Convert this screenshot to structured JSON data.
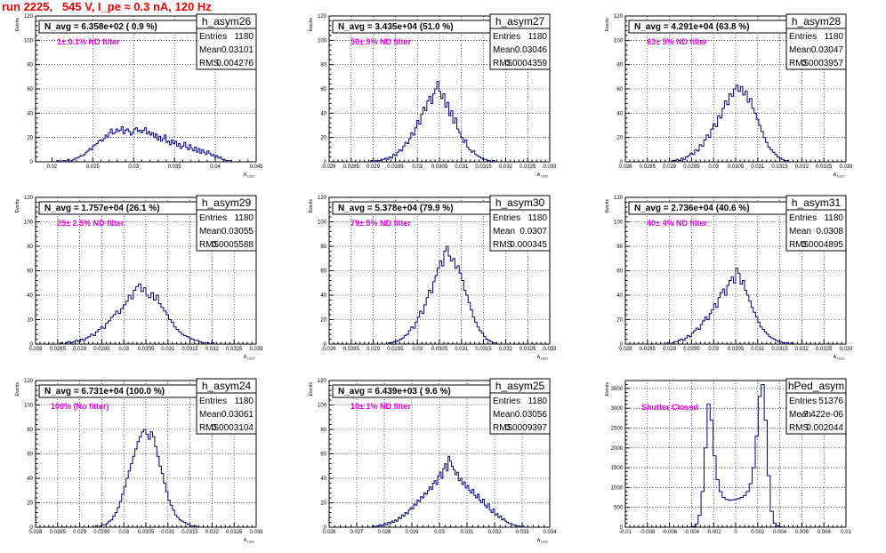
{
  "page_title": "run 2225,   545 V, I_pe ≈ 0.3 nA, 120 Hz",
  "colors": {
    "title": "#ee0000",
    "histogram": "#000080",
    "annotation": "#ee00ee"
  },
  "chart_data": [
    {
      "type": "bar",
      "name": "h_asym26",
      "stats": {
        "Entries": "1180",
        "Mean": "0.03101",
        "RMS": "0.004276"
      },
      "navg": "N_avg = 6.358e+02 ( 0.9 %)",
      "note": "1± 0.1% ND filter",
      "ylabel": "Events",
      "xlabel": "A_LED",
      "xlim": [
        0.018,
        0.045
      ],
      "ylim": [
        0,
        120
      ],
      "xticks": [
        "0.02",
        "0.025",
        "0.03",
        "0.035",
        "0.04",
        "0.045"
      ],
      "xtick_values": [
        0.02,
        0.025,
        0.03,
        0.035,
        0.04,
        0.045
      ],
      "yticks": [
        "0",
        "20",
        "40",
        "60",
        "80",
        "100",
        "120"
      ],
      "yminor": 5,
      "grid": true,
      "bin_range": [
        0.0195,
        0.0425
      ],
      "values": [
        0,
        0,
        0,
        0,
        0,
        1,
        0,
        0,
        1,
        1,
        0,
        2,
        0,
        1,
        2,
        3,
        3,
        4,
        5,
        5,
        6,
        8,
        9,
        11,
        10,
        13,
        14,
        15,
        17,
        18,
        17,
        19,
        22,
        20,
        24,
        27,
        23,
        24,
        27,
        25,
        26,
        29,
        23,
        26,
        27,
        25,
        22,
        24,
        27,
        28,
        25,
        26,
        24,
        26,
        28,
        23,
        25,
        22,
        24,
        20,
        23,
        18,
        21,
        17,
        19,
        22,
        16,
        17,
        14,
        18,
        15,
        17,
        13,
        15,
        11,
        13,
        16,
        12,
        10,
        14,
        11,
        9,
        12,
        8,
        11,
        7,
        10,
        8,
        6,
        9,
        7,
        5,
        6,
        4,
        5,
        3,
        4,
        2,
        2,
        1,
        1,
        1,
        0,
        0,
        0
      ]
    },
    {
      "type": "bar",
      "name": "h_asym27",
      "stats": {
        "Entries": "1180",
        "Mean": "0.03046",
        "RMS": "0.0004359"
      },
      "navg": "N_avg = 3.435e+04 (51.0 %)",
      "note": "50± 5% ND filter",
      "ylabel": "Events",
      "xlabel": "A_LED",
      "xlim": [
        0.028,
        0.033
      ],
      "ylim": [
        0,
        120
      ],
      "xticks": [
        "0.028",
        "0.0285",
        "0.029",
        "0.0295",
        "0.03",
        "0.0305",
        "0.031",
        "0.0315",
        "0.032",
        "0.0325",
        "0.033"
      ],
      "yticks": [
        "0",
        "20",
        "40",
        "60",
        "80",
        "100",
        "120"
      ],
      "yminor": 5,
      "grid": true,
      "bin_range": [
        0.0289,
        0.0318
      ],
      "values": [
        0,
        1,
        0,
        1,
        1,
        1,
        2,
        2,
        3,
        2,
        4,
        3,
        6,
        5,
        8,
        10,
        9,
        13,
        16,
        15,
        19,
        24,
        22,
        28,
        34,
        31,
        39,
        45,
        42,
        50,
        54,
        48,
        56,
        60,
        66,
        58,
        52,
        56,
        45,
        49,
        38,
        42,
        32,
        36,
        27,
        24,
        20,
        16,
        18,
        12,
        10,
        8,
        9,
        6,
        5,
        4,
        3,
        2,
        2,
        1,
        1,
        0,
        1,
        0
      ]
    },
    {
      "type": "bar",
      "name": "h_asym28",
      "stats": {
        "Entries": "1180",
        "Mean": "0.03047",
        "RMS": "0.0003957"
      },
      "navg": "N_avg = 4.291e+04 (63.8 %)",
      "note": "63± 5% ND filter",
      "ylabel": "Events",
      "xlabel": "A_LED",
      "xlim": [
        0.028,
        0.033
      ],
      "ylim": [
        0,
        120
      ],
      "xticks": [
        "0.028",
        "0.0285",
        "0.029",
        "0.0295",
        "0.03",
        "0.0305",
        "0.031",
        "0.0315",
        "0.032",
        "0.0325",
        "0.033"
      ],
      "yticks": [
        "0",
        "20",
        "40",
        "60",
        "80",
        "100",
        "120"
      ],
      "yminor": 5,
      "grid": true,
      "bin_range": [
        0.029,
        0.0318
      ],
      "values": [
        0,
        1,
        1,
        2,
        1,
        3,
        2,
        4,
        5,
        7,
        6,
        10,
        9,
        14,
        13,
        18,
        22,
        20,
        27,
        31,
        29,
        38,
        36,
        44,
        50,
        47,
        56,
        54,
        60,
        63,
        58,
        62,
        55,
        58,
        49,
        52,
        44,
        40,
        35,
        30,
        25,
        20,
        16,
        12,
        10,
        8,
        6,
        4,
        3,
        2,
        1,
        1,
        0,
        0
      ]
    },
    {
      "type": "bar",
      "name": "h_asym29",
      "stats": {
        "Entries": "1180",
        "Mean": "0.03055",
        "RMS": "0.0005588"
      },
      "navg": "N_avg = 1.757e+04 (26.1 %)",
      "note": "25± 2.5% ND filter",
      "ylabel": "Events",
      "xlabel": "A_LED",
      "xlim": [
        0.028,
        0.033
      ],
      "ylim": [
        0,
        120
      ],
      "xticks": [
        "0.028",
        "0.0285",
        "0.029",
        "0.0295",
        "0.03",
        "0.0305",
        "0.031",
        "0.0315",
        "0.032",
        "0.0325",
        "0.033"
      ],
      "yticks": [
        "0",
        "20",
        "40",
        "60",
        "80",
        "100",
        "120"
      ],
      "yminor": 5,
      "grid": true,
      "bin_range": [
        0.0285,
        0.0321
      ],
      "values": [
        0,
        1,
        0,
        1,
        2,
        1,
        2,
        3,
        2,
        4,
        3,
        5,
        6,
        8,
        7,
        10,
        12,
        14,
        13,
        17,
        19,
        22,
        24,
        27,
        25,
        29,
        32,
        35,
        40,
        37,
        44,
        47,
        49,
        43,
        46,
        40,
        38,
        42,
        36,
        40,
        33,
        30,
        27,
        24,
        20,
        18,
        14,
        12,
        10,
        8,
        7,
        6,
        5,
        4,
        3,
        3,
        2,
        1,
        1,
        1,
        0,
        1,
        0
      ]
    },
    {
      "type": "bar",
      "name": "h_asym30",
      "stats": {
        "Entries": "1180",
        "Mean": "0.0307",
        "RMS": "0.000345"
      },
      "navg": "N_avg = 5.378e+04 (79.9 %)",
      "note": "79± 5% ND filter",
      "ylabel": "Events",
      "xlabel": "A_LED",
      "xlim": [
        0.028,
        0.033
      ],
      "ylim": [
        0,
        120
      ],
      "xticks": [
        "0.028",
        "0.0285",
        "0.029",
        "0.0295",
        "0.03",
        "0.0305",
        "0.031",
        "0.0315",
        "0.032",
        "0.0325",
        "0.033"
      ],
      "yticks": [
        "0",
        "20",
        "40",
        "60",
        "80",
        "100",
        "120"
      ],
      "yminor": 5,
      "grid": true,
      "bin_range": [
        0.0293,
        0.0319
      ],
      "values": [
        0,
        1,
        1,
        2,
        2,
        3,
        4,
        5,
        7,
        8,
        11,
        14,
        13,
        18,
        22,
        27,
        25,
        32,
        38,
        44,
        42,
        51,
        56,
        62,
        68,
        64,
        76,
        80,
        72,
        68,
        70,
        62,
        64,
        58,
        52,
        44,
        40,
        34,
        28,
        22,
        18,
        14,
        11,
        9,
        6,
        4,
        3,
        2,
        1,
        1,
        0,
        0
      ]
    },
    {
      "type": "bar",
      "name": "h_asym31",
      "stats": {
        "Entries": "1180",
        "Mean": "0.0308",
        "RMS": "0.0004895"
      },
      "navg": "N_avg = 2.736e+04 (40.6 %)",
      "note": "40± 4% ND filter",
      "ylabel": "Events",
      "xlabel": "A_LED",
      "xlim": [
        0.028,
        0.033
      ],
      "ylim": [
        0,
        120
      ],
      "xticks": [
        "0.028",
        "0.0285",
        "0.029",
        "0.0295",
        "0.03",
        "0.0305",
        "0.031",
        "0.0315",
        "0.032",
        "0.0325",
        "0.033"
      ],
      "yticks": [
        "0",
        "20",
        "40",
        "60",
        "80",
        "100",
        "120"
      ],
      "yminor": 5,
      "grid": true,
      "bin_range": [
        0.0289,
        0.0321
      ],
      "values": [
        0,
        1,
        0,
        1,
        2,
        2,
        3,
        4,
        3,
        5,
        7,
        6,
        9,
        11,
        13,
        12,
        16,
        19,
        22,
        20,
        25,
        28,
        33,
        30,
        38,
        42,
        45,
        40,
        48,
        52,
        55,
        50,
        62,
        58,
        49,
        52,
        44,
        40,
        35,
        30,
        26,
        22,
        18,
        14,
        12,
        10,
        8,
        6,
        5,
        4,
        3,
        2,
        2,
        1,
        1,
        1,
        0,
        1,
        0,
        0,
        0,
        0,
        0,
        0
      ]
    },
    {
      "type": "bar",
      "name": "h_asym24",
      "stats": {
        "Entries": "1180",
        "Mean": "0.03061",
        "RMS": "0.0003104"
      },
      "navg": "N_avg = 6.731e+04 (100.0 %)",
      "note": "100% (No filter)",
      "ylabel": "Events",
      "xlabel": "A_LED",
      "xlim": [
        0.028,
        0.033
      ],
      "ylim": [
        0,
        120
      ],
      "xticks": [
        "0.028",
        "0.0285",
        "0.029",
        "0.0295",
        "0.03",
        "0.0305",
        "0.031",
        "0.0315",
        "0.032",
        "0.0325",
        "0.033"
      ],
      "yticks": [
        "0",
        "20",
        "40",
        "60",
        "80",
        "100",
        "120"
      ],
      "yminor": 5,
      "grid": true,
      "bin_range": [
        0.0293,
        0.0318
      ],
      "values": [
        0,
        1,
        0,
        1,
        2,
        2,
        3,
        5,
        6,
        9,
        12,
        16,
        21,
        27,
        33,
        40,
        46,
        52,
        58,
        64,
        70,
        74,
        78,
        80,
        76,
        72,
        78,
        74,
        66,
        58,
        50,
        44,
        36,
        29,
        22,
        18,
        14,
        10,
        8,
        6,
        5,
        4,
        3,
        2,
        1,
        1,
        1,
        0,
        0,
        0
      ]
    },
    {
      "type": "bar",
      "name": "h_asym25",
      "stats": {
        "Entries": "1180",
        "Mean": "0.03056",
        "RMS": "0.0009397"
      },
      "navg": "N_avg = 6.439e+03 ( 9.6 %)",
      "note": "10± 1% ND filter",
      "ylabel": "Events",
      "xlabel": "A_LED",
      "xlim": [
        0.026,
        0.034
      ],
      "ylim": [
        0,
        120
      ],
      "xticks": [
        "0.026",
        "0.027",
        "0.028",
        "0.029",
        "0.03",
        "0.031",
        "0.032",
        "0.033",
        "0.034"
      ],
      "yticks": [
        "0",
        "20",
        "40",
        "60",
        "80",
        "100",
        "120"
      ],
      "yminor": 5,
      "grid": true,
      "bin_range": [
        0.0275,
        0.0335
      ],
      "values": [
        0,
        1,
        0,
        1,
        1,
        2,
        1,
        2,
        3,
        2,
        4,
        3,
        5,
        4,
        6,
        5,
        8,
        7,
        10,
        9,
        12,
        11,
        14,
        16,
        15,
        19,
        18,
        22,
        21,
        25,
        24,
        28,
        27,
        30,
        33,
        31,
        36,
        38,
        35,
        42,
        45,
        40,
        48,
        52,
        46,
        58,
        54,
        50,
        47,
        43,
        45,
        38,
        40,
        35,
        37,
        32,
        34,
        30,
        28,
        31,
        26,
        24,
        27,
        22,
        20,
        23,
        18,
        16,
        19,
        14,
        12,
        15,
        10,
        11,
        8,
        9,
        6,
        7,
        5,
        4,
        3,
        3,
        2,
        2,
        1,
        1,
        1,
        0,
        1,
        0,
        0,
        0,
        0,
        0,
        0,
        0
      ]
    },
    {
      "type": "bar",
      "name": "hPed_asym",
      "stats": {
        "Entries": "51376",
        "Mean": "-7.422e-06",
        "RMS": "0.002044"
      },
      "navg": "",
      "note": "Shutter Closed",
      "ylabel": "Events",
      "xlabel": "",
      "xlim": [
        -0.01,
        0.01
      ],
      "ylim": [
        0,
        3700
      ],
      "xticks": [
        "-0.01",
        "-0.008",
        "-0.006",
        "-0.004",
        "-0.002",
        "0",
        "0.002",
        "0.004",
        "0.006",
        "0.008",
        "0.01"
      ],
      "yticks": [
        "0",
        "500",
        "1000",
        "1500",
        "2000",
        "2500",
        "3000",
        "3500"
      ],
      "ytick_values": [
        0,
        500,
        1000,
        1500,
        2000,
        2500,
        3000,
        3500
      ],
      "yminor": 5,
      "grid": true,
      "bin_range": [
        -0.0045,
        0.0045
      ],
      "values": [
        0,
        5,
        20,
        80,
        300,
        900,
        2000,
        3100,
        2700,
        1800,
        1200,
        900,
        750,
        700,
        680,
        690,
        700,
        720,
        750,
        800,
        900,
        1100,
        1500,
        2300,
        3300,
        3600,
        2700,
        1300,
        400,
        100,
        30,
        10,
        0
      ]
    }
  ]
}
